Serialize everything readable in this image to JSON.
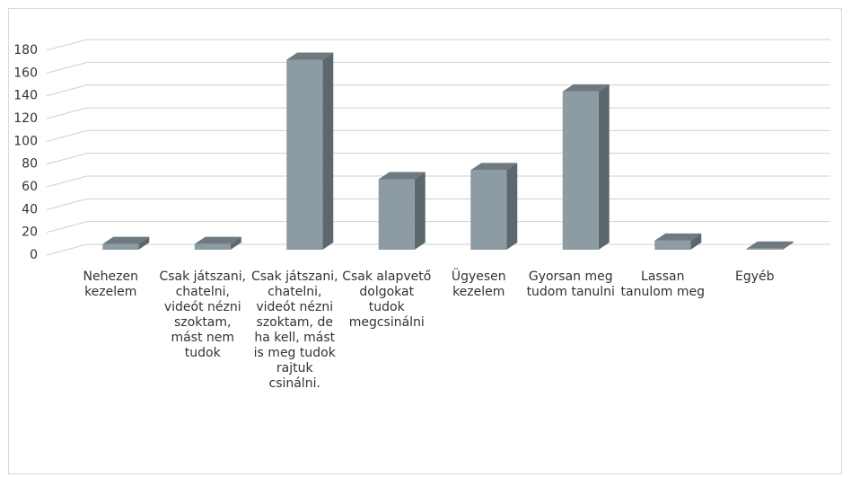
{
  "chart_data": {
    "type": "bar",
    "categories": [
      "Nehezen kezelem",
      "Csak játszani, chatelni, videót nézni szoktam, mást nem tudok",
      "Csak játszani, chatelni, videót nézni szoktam, de ha kell, mást is meg tudok rajtuk csinálni.",
      "Csak alapvető dolgokat tudok megcsinálni",
      "Ügyesen kezelem",
      "Gyorsan meg tudom tanulni",
      "Lassan tanulom meg",
      "Egyéb"
    ],
    "values": [
      5,
      5,
      167,
      62,
      70,
      139,
      8,
      1
    ],
    "color": "#8d9ca3",
    "ylim": [
      0,
      180
    ],
    "yticks": [
      0,
      20,
      40,
      60,
      80,
      100,
      120,
      140,
      160,
      180
    ],
    "grid": true
  }
}
